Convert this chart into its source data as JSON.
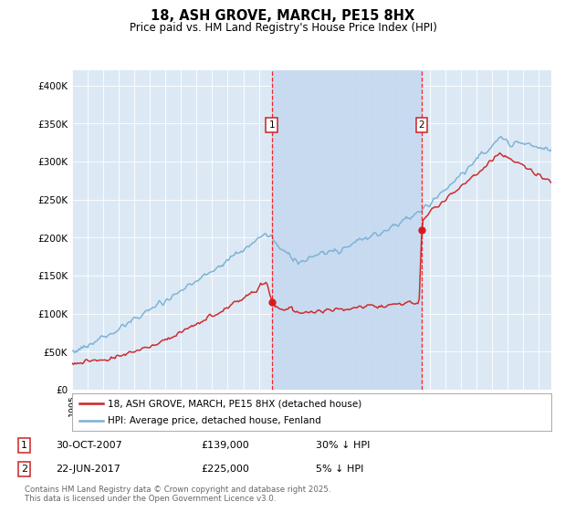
{
  "title": "18, ASH GROVE, MARCH, PE15 8HX",
  "subtitle": "Price paid vs. HM Land Registry's House Price Index (HPI)",
  "bg_color": "#dce9f5",
  "highlight_color": "#c6d9f0",
  "hpi_color": "#7ab0d4",
  "price_color": "#cc2222",
  "ylim": [
    0,
    420000
  ],
  "ylabel_ticks": [
    0,
    50000,
    100000,
    150000,
    200000,
    250000,
    300000,
    350000,
    400000
  ],
  "ylabel_labels": [
    "£0",
    "£50K",
    "£100K",
    "£150K",
    "£200K",
    "£250K",
    "£300K",
    "£350K",
    "£400K"
  ],
  "legend1": "18, ASH GROVE, MARCH, PE15 8HX (detached house)",
  "legend2": "HPI: Average price, detached house, Fenland",
  "footer": "Contains HM Land Registry data © Crown copyright and database right 2025.\nThis data is licensed under the Open Government Licence v3.0.",
  "xstart_year": 1995,
  "xend_year": 2025,
  "m1_year": 2007.83,
  "m2_year": 2017.47,
  "m1_price": 139000,
  "m2_price": 225000
}
